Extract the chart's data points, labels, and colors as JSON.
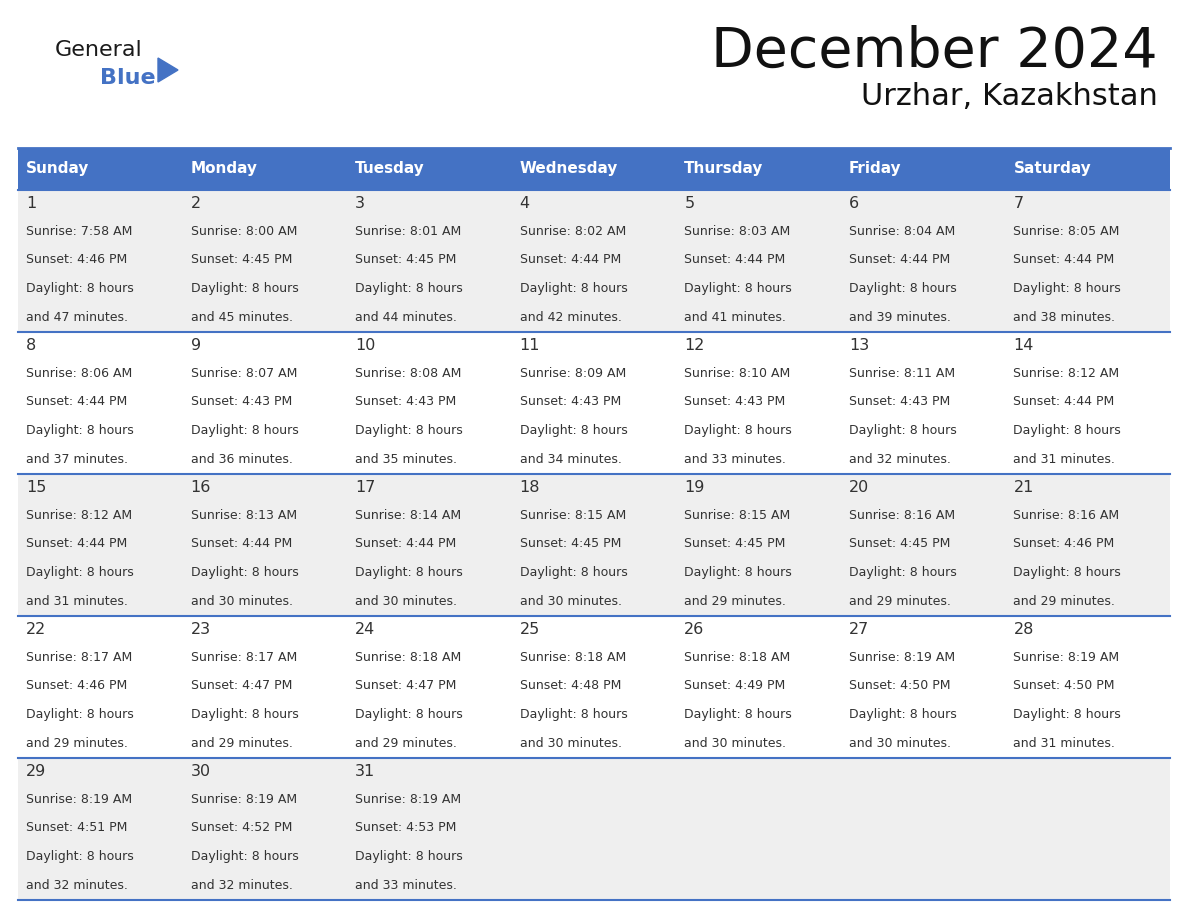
{
  "title": "December 2024",
  "subtitle": "Urzhar, Kazakhstan",
  "header_color": "#4472C4",
  "header_text_color": "#FFFFFF",
  "day_names": [
    "Sunday",
    "Monday",
    "Tuesday",
    "Wednesday",
    "Thursday",
    "Friday",
    "Saturday"
  ],
  "bg_color": "#FFFFFF",
  "cell_bg_even": "#EFEFEF",
  "cell_bg_odd": "#FFFFFF",
  "row_line_color": "#4472C4",
  "text_color": "#333333",
  "logo_general_color": "#1a1a1a",
  "logo_blue_color": "#4472C4",
  "logo_triangle_color": "#4472C4",
  "days": [
    {
      "day": 1,
      "col": 0,
      "row": 0,
      "sunrise": "7:58 AM",
      "sunset": "4:46 PM",
      "daylight": "8 hours and 47 minutes."
    },
    {
      "day": 2,
      "col": 1,
      "row": 0,
      "sunrise": "8:00 AM",
      "sunset": "4:45 PM",
      "daylight": "8 hours and 45 minutes."
    },
    {
      "day": 3,
      "col": 2,
      "row": 0,
      "sunrise": "8:01 AM",
      "sunset": "4:45 PM",
      "daylight": "8 hours and 44 minutes."
    },
    {
      "day": 4,
      "col": 3,
      "row": 0,
      "sunrise": "8:02 AM",
      "sunset": "4:44 PM",
      "daylight": "8 hours and 42 minutes."
    },
    {
      "day": 5,
      "col": 4,
      "row": 0,
      "sunrise": "8:03 AM",
      "sunset": "4:44 PM",
      "daylight": "8 hours and 41 minutes."
    },
    {
      "day": 6,
      "col": 5,
      "row": 0,
      "sunrise": "8:04 AM",
      "sunset": "4:44 PM",
      "daylight": "8 hours and 39 minutes."
    },
    {
      "day": 7,
      "col": 6,
      "row": 0,
      "sunrise": "8:05 AM",
      "sunset": "4:44 PM",
      "daylight": "8 hours and 38 minutes."
    },
    {
      "day": 8,
      "col": 0,
      "row": 1,
      "sunrise": "8:06 AM",
      "sunset": "4:44 PM",
      "daylight": "8 hours and 37 minutes."
    },
    {
      "day": 9,
      "col": 1,
      "row": 1,
      "sunrise": "8:07 AM",
      "sunset": "4:43 PM",
      "daylight": "8 hours and 36 minutes."
    },
    {
      "day": 10,
      "col": 2,
      "row": 1,
      "sunrise": "8:08 AM",
      "sunset": "4:43 PM",
      "daylight": "8 hours and 35 minutes."
    },
    {
      "day": 11,
      "col": 3,
      "row": 1,
      "sunrise": "8:09 AM",
      "sunset": "4:43 PM",
      "daylight": "8 hours and 34 minutes."
    },
    {
      "day": 12,
      "col": 4,
      "row": 1,
      "sunrise": "8:10 AM",
      "sunset": "4:43 PM",
      "daylight": "8 hours and 33 minutes."
    },
    {
      "day": 13,
      "col": 5,
      "row": 1,
      "sunrise": "8:11 AM",
      "sunset": "4:43 PM",
      "daylight": "8 hours and 32 minutes."
    },
    {
      "day": 14,
      "col": 6,
      "row": 1,
      "sunrise": "8:12 AM",
      "sunset": "4:44 PM",
      "daylight": "8 hours and 31 minutes."
    },
    {
      "day": 15,
      "col": 0,
      "row": 2,
      "sunrise": "8:12 AM",
      "sunset": "4:44 PM",
      "daylight": "8 hours and 31 minutes."
    },
    {
      "day": 16,
      "col": 1,
      "row": 2,
      "sunrise": "8:13 AM",
      "sunset": "4:44 PM",
      "daylight": "8 hours and 30 minutes."
    },
    {
      "day": 17,
      "col": 2,
      "row": 2,
      "sunrise": "8:14 AM",
      "sunset": "4:44 PM",
      "daylight": "8 hours and 30 minutes."
    },
    {
      "day": 18,
      "col": 3,
      "row": 2,
      "sunrise": "8:15 AM",
      "sunset": "4:45 PM",
      "daylight": "8 hours and 30 minutes."
    },
    {
      "day": 19,
      "col": 4,
      "row": 2,
      "sunrise": "8:15 AM",
      "sunset": "4:45 PM",
      "daylight": "8 hours and 29 minutes."
    },
    {
      "day": 20,
      "col": 5,
      "row": 2,
      "sunrise": "8:16 AM",
      "sunset": "4:45 PM",
      "daylight": "8 hours and 29 minutes."
    },
    {
      "day": 21,
      "col": 6,
      "row": 2,
      "sunrise": "8:16 AM",
      "sunset": "4:46 PM",
      "daylight": "8 hours and 29 minutes."
    },
    {
      "day": 22,
      "col": 0,
      "row": 3,
      "sunrise": "8:17 AM",
      "sunset": "4:46 PM",
      "daylight": "8 hours and 29 minutes."
    },
    {
      "day": 23,
      "col": 1,
      "row": 3,
      "sunrise": "8:17 AM",
      "sunset": "4:47 PM",
      "daylight": "8 hours and 29 minutes."
    },
    {
      "day": 24,
      "col": 2,
      "row": 3,
      "sunrise": "8:18 AM",
      "sunset": "4:47 PM",
      "daylight": "8 hours and 29 minutes."
    },
    {
      "day": 25,
      "col": 3,
      "row": 3,
      "sunrise": "8:18 AM",
      "sunset": "4:48 PM",
      "daylight": "8 hours and 30 minutes."
    },
    {
      "day": 26,
      "col": 4,
      "row": 3,
      "sunrise": "8:18 AM",
      "sunset": "4:49 PM",
      "daylight": "8 hours and 30 minutes."
    },
    {
      "day": 27,
      "col": 5,
      "row": 3,
      "sunrise": "8:19 AM",
      "sunset": "4:50 PM",
      "daylight": "8 hours and 30 minutes."
    },
    {
      "day": 28,
      "col": 6,
      "row": 3,
      "sunrise": "8:19 AM",
      "sunset": "4:50 PM",
      "daylight": "8 hours and 31 minutes."
    },
    {
      "day": 29,
      "col": 0,
      "row": 4,
      "sunrise": "8:19 AM",
      "sunset": "4:51 PM",
      "daylight": "8 hours and 32 minutes."
    },
    {
      "day": 30,
      "col": 1,
      "row": 4,
      "sunrise": "8:19 AM",
      "sunset": "4:52 PM",
      "daylight": "8 hours and 32 minutes."
    },
    {
      "day": 31,
      "col": 2,
      "row": 4,
      "sunrise": "8:19 AM",
      "sunset": "4:53 PM",
      "daylight": "8 hours and 33 minutes."
    }
  ]
}
